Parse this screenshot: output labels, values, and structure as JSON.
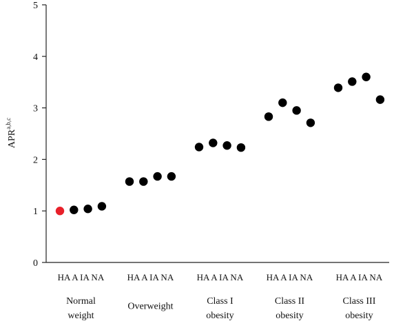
{
  "chart_data": {
    "type": "scatter",
    "title": "",
    "xlabel": "",
    "ylabel": "APR",
    "ylabel_superscript": "a,b,c",
    "ylim": [
      0,
      5
    ],
    "yticks": [
      "0",
      "1",
      "2",
      "3",
      "4",
      "5"
    ],
    "grid": false,
    "legend": "none",
    "groups": [
      {
        "label": [
          "Normal",
          "weight"
        ],
        "categories": [
          "HA",
          "A",
          "IA",
          "NA"
        ],
        "values": [
          1.0,
          1.02,
          1.04,
          1.09
        ],
        "colors": [
          "#e8202a",
          "#000000",
          "#000000",
          "#000000"
        ]
      },
      {
        "label": [
          "Overweight"
        ],
        "categories": [
          "HA",
          "A",
          "IA",
          "NA"
        ],
        "values": [
          1.57,
          1.57,
          1.67,
          1.67
        ],
        "colors": [
          "#000000",
          "#000000",
          "#000000",
          "#000000"
        ]
      },
      {
        "label": [
          "Class I",
          "obesity"
        ],
        "categories": [
          "HA",
          "A",
          "IA",
          "NA"
        ],
        "values": [
          2.24,
          2.32,
          2.27,
          2.23
        ],
        "colors": [
          "#000000",
          "#000000",
          "#000000",
          "#000000"
        ]
      },
      {
        "label": [
          "Class II",
          "obesity"
        ],
        "categories": [
          "HA",
          "A",
          "IA",
          "NA"
        ],
        "values": [
          2.83,
          3.1,
          2.95,
          2.71
        ],
        "colors": [
          "#000000",
          "#000000",
          "#000000",
          "#000000"
        ]
      },
      {
        "label": [
          "Class III",
          "obesity"
        ],
        "categories": [
          "HA",
          "A",
          "IA",
          "NA"
        ],
        "values": [
          3.39,
          3.51,
          3.6,
          3.16
        ],
        "colors": [
          "#000000",
          "#000000",
          "#000000",
          "#000000"
        ]
      }
    ]
  }
}
